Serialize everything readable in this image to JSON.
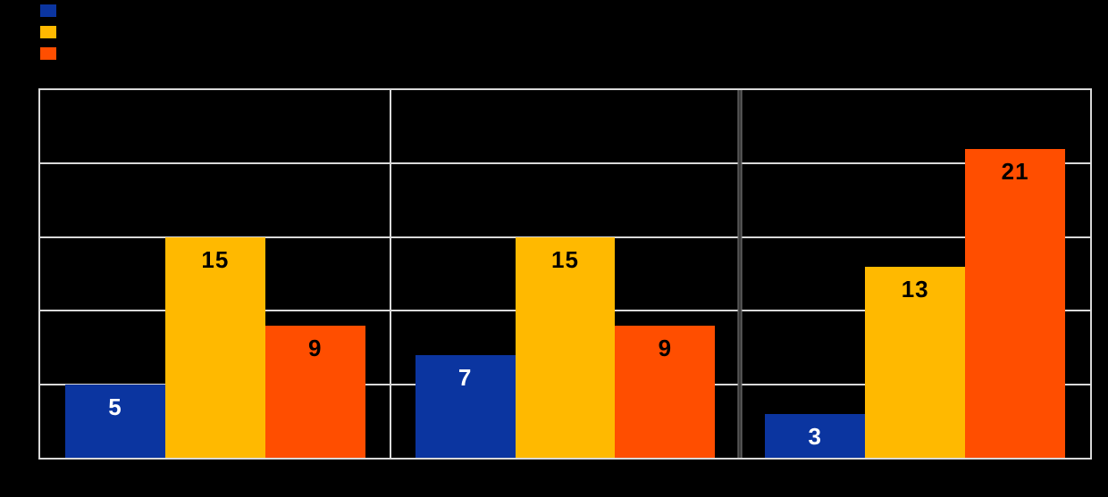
{
  "canvas": {
    "background": "#000000"
  },
  "legend": {
    "position": "top-left",
    "items": [
      {
        "label": "",
        "color": "#0B35A0"
      },
      {
        "label": "",
        "color": "#FFB900"
      },
      {
        "label": "",
        "color": "#FF4E00"
      }
    ]
  },
  "plot": {
    "background": "#000000",
    "border_color": "#D9D9D9",
    "gridline_color": "#D9D9D9",
    "category_separators": [
      {
        "after_category": 1,
        "color": "#D9D9D9",
        "edge_color": "",
        "thickness": 2
      },
      {
        "after_category": 2,
        "color": "#3A3A3A",
        "edge_color": "#8A8A8A",
        "thickness": 5
      }
    ]
  },
  "chart_data": {
    "type": "bar",
    "title": "",
    "xlabel": "",
    "ylabel": "",
    "categories": [
      "",
      "",
      ""
    ],
    "series": [
      {
        "name": "",
        "color": "#0B35A0",
        "label_color": "#FFFFFF",
        "values": [
          5,
          7,
          3
        ]
      },
      {
        "name": "",
        "color": "#FFB900",
        "label_color": "#000000",
        "values": [
          15,
          15,
          13
        ]
      },
      {
        "name": "",
        "color": "#FF4E00",
        "label_color": "#000000",
        "values": [
          9,
          9,
          21
        ]
      }
    ],
    "ylim": [
      0,
      25
    ],
    "gridline_step": 5,
    "grid": true,
    "data_labels": true,
    "legend_position": "top-left"
  }
}
